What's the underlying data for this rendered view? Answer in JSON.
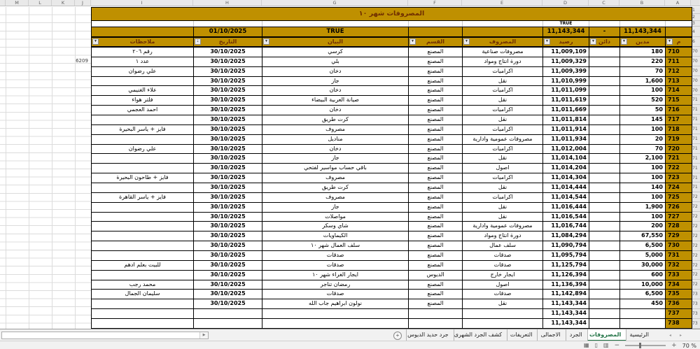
{
  "title": "المصروفات شهر ١٠",
  "sheet": {
    "column_letters": [
      "M",
      "L",
      "K",
      "J",
      "I",
      "H",
      "G",
      "F",
      "E",
      "D",
      "C",
      "B",
      "A"
    ],
    "gutter_top": [
      "1",
      "2",
      "3",
      "4",
      "6"
    ]
  },
  "stray": {
    "value": "6209"
  },
  "summary": {
    "flag_small": "TRUE",
    "flag": "TRUE",
    "start_date": "01/10/2025",
    "total_balance": "11,143,344",
    "credit_dash": "-",
    "total_debit": "11,143,344"
  },
  "header": {
    "serial": "م",
    "debit": "مدين",
    "credit": "دائن",
    "balance": "رصيد",
    "expense": "المصروف",
    "section": "القسم",
    "description": "البيان",
    "date": "التاريخ",
    "notes": "ملاحظات"
  },
  "rows": [
    {
      "g": "70",
      "s": "710",
      "db": "180",
      "cr": "",
      "bal": "11,009,109",
      "exp": "مصروفات صناعية",
      "sec": "المصنع",
      "desc": "كرسي",
      "date": "30/10/2025",
      "note": "رقم ٢٠٦"
    },
    {
      "g": "70",
      "s": "711",
      "db": "220",
      "cr": "",
      "bal": "11,009,329",
      "exp": "دورة انتاج ومواد",
      "sec": "المصنع",
      "desc": "بلي",
      "date": "30/10/2025",
      "note": "عدد ١"
    },
    {
      "g": "70",
      "s": "712",
      "db": "70",
      "cr": "",
      "bal": "11,009,399",
      "exp": "اكراميات",
      "sec": "المصنع",
      "desc": "دخان",
      "date": "30/10/2025",
      "note": "علي رضوان"
    },
    {
      "g": "70",
      "s": "713",
      "db": "1,600",
      "cr": "",
      "bal": "11,010,999",
      "exp": "نقل",
      "sec": "المصنع",
      "desc": "جاز",
      "date": "30/10/2025",
      "note": ""
    },
    {
      "g": "70",
      "s": "714",
      "db": "100",
      "cr": "",
      "bal": "11,011,099",
      "exp": "اكراميات",
      "sec": "المصنع",
      "desc": "دخان",
      "date": "30/10/2025",
      "note": "علاء الغنيمي"
    },
    {
      "g": "71",
      "s": "715",
      "db": "520",
      "cr": "",
      "bal": "11,011,619",
      "exp": "نقل",
      "sec": "المصنع",
      "desc": "صيانة العربية البيضاء",
      "date": "30/10/2025",
      "note": "فلتر هواء"
    },
    {
      "g": "71",
      "s": "716",
      "db": "50",
      "cr": "",
      "bal": "11,011,669",
      "exp": "اكراميات",
      "sec": "المصنع",
      "desc": "دخان",
      "date": "30/10/2025",
      "note": "احمد العجمي"
    },
    {
      "g": "71",
      "s": "717",
      "db": "145",
      "cr": "",
      "bal": "11,011,814",
      "exp": "نقل",
      "sec": "المصنع",
      "desc": "كرت طريق",
      "date": "30/10/2025",
      "note": ""
    },
    {
      "g": "71",
      "s": "718",
      "db": "100",
      "cr": "",
      "bal": "11,011,914",
      "exp": "اكراميات",
      "sec": "المصنع",
      "desc": "مصروف",
      "date": "30/10/2025",
      "note": "فايز + ياسر البحيرة"
    },
    {
      "g": "71",
      "s": "719",
      "db": "20",
      "cr": "",
      "bal": "11,011,934",
      "exp": "مصروفات عمومية وادارية",
      "sec": "المصنع",
      "desc": "مناديل",
      "date": "30/10/2025",
      "note": ""
    },
    {
      "g": "71",
      "s": "720",
      "db": "70",
      "cr": "",
      "bal": "11,012,004",
      "exp": "اكراميات",
      "sec": "المصنع",
      "desc": "دخان",
      "date": "30/10/2025",
      "note": "علي رضوان"
    },
    {
      "g": "71",
      "s": "721",
      "db": "2,100",
      "cr": "",
      "bal": "11,014,104",
      "exp": "نقل",
      "sec": "المصنع",
      "desc": "جاز",
      "date": "30/10/2025",
      "note": ""
    },
    {
      "g": "71",
      "s": "722",
      "db": "100",
      "cr": "",
      "bal": "11,014,204",
      "exp": "اصول",
      "sec": "المصنع",
      "desc": "باقي حساب مواسير لفتحي",
      "date": "30/10/2025",
      "note": ""
    },
    {
      "g": "71",
      "s": "723",
      "db": "100",
      "cr": "",
      "bal": "11,014,304",
      "exp": "اكراميات",
      "sec": "المصنع",
      "desc": "مصروف",
      "date": "30/10/2025",
      "note": "فايز + طاحون البحيرة"
    },
    {
      "g": "71",
      "s": "724",
      "db": "140",
      "cr": "",
      "bal": "11,014,444",
      "exp": "نقل",
      "sec": "المصنع",
      "desc": "كرت طريق",
      "date": "30/10/2025",
      "note": ""
    },
    {
      "g": "72",
      "s": "725",
      "db": "100",
      "cr": "",
      "bal": "11,014,544",
      "exp": "اكراميات",
      "sec": "المصنع",
      "desc": "مصروف",
      "date": "30/10/2025",
      "note": "فايز + ياسر القاهرة"
    },
    {
      "g": "72",
      "s": "726",
      "db": "1,900",
      "cr": "",
      "bal": "11,016,444",
      "exp": "نقل",
      "sec": "المصنع",
      "desc": "جاز",
      "date": "30/10/2025",
      "note": ""
    },
    {
      "g": "72",
      "s": "727",
      "db": "100",
      "cr": "",
      "bal": "11,016,544",
      "exp": "نقل",
      "sec": "المصنع",
      "desc": "مواصلات",
      "date": "30/10/2025",
      "note": ""
    },
    {
      "g": "72",
      "s": "728",
      "db": "200",
      "cr": "",
      "bal": "11,016,744",
      "exp": "مصروفات عمومية وادارية",
      "sec": "المصنع",
      "desc": "شاي وسكر",
      "date": "30/10/2025",
      "note": ""
    },
    {
      "g": "72",
      "s": "729",
      "db": "67,550",
      "cr": "",
      "bal": "11,084,294",
      "exp": "دورة انتاج ومواد",
      "sec": "المصنع",
      "desc": "الكيماويات",
      "date": "30/10/2025",
      "note": ""
    },
    {
      "g": "72",
      "s": "730",
      "db": "6,500",
      "cr": "",
      "bal": "11,090,794",
      "exp": "سلف عمال",
      "sec": "المصنع",
      "desc": "سلف العمال شهر ١٠",
      "date": "30/10/2025",
      "note": ""
    },
    {
      "g": "72",
      "s": "731",
      "db": "5,000",
      "cr": "",
      "bal": "11,095,794",
      "exp": "صدقات",
      "sec": "المصنع",
      "desc": "صدقات",
      "date": "30/10/2025",
      "note": ""
    },
    {
      "g": "72",
      "s": "732",
      "db": "30,000",
      "cr": "",
      "bal": "11,125,794",
      "exp": "صدقات",
      "sec": "المصنع",
      "desc": "صدقات",
      "date": "30/10/2025",
      "note": "للبيت بعلم ادهم"
    },
    {
      "g": "72",
      "s": "733",
      "db": "600",
      "cr": "",
      "bal": "11,126,394",
      "exp": "ايجار خارج",
      "sec": "الديوس",
      "desc": "ايجار الغراء شهر ١٠",
      "date": "30/10/2025",
      "note": ""
    },
    {
      "g": "72",
      "s": "734",
      "db": "10,000",
      "cr": "",
      "bal": "11,136,394",
      "exp": "اصول",
      "sec": "المصنع",
      "desc": "رمضان تناجر",
      "date": "30/10/2025",
      "note": "محمد رجب"
    },
    {
      "g": "73",
      "s": "735",
      "db": "6,500",
      "cr": "",
      "bal": "11,142,894",
      "exp": "صدقات",
      "sec": "المصنع",
      "desc": "صدقات",
      "date": "30/10/2025",
      "note": "سليمان الجمال"
    },
    {
      "g": "73",
      "s": "736",
      "db": "450",
      "cr": "",
      "bal": "11,143,344",
      "exp": "نقل",
      "sec": "المصنع",
      "desc": "نولون ابراهيم جاب الله",
      "date": "30/10/2025",
      "note": ""
    },
    {
      "g": "73",
      "s": "737",
      "db": "",
      "cr": "",
      "bal": "11,143,344",
      "exp": "",
      "sec": "",
      "desc": "",
      "date": "",
      "note": ""
    },
    {
      "g": "73",
      "s": "738",
      "db": "",
      "cr": "",
      "bal": "11,143,344",
      "exp": "",
      "sec": "",
      "desc": "",
      "date": "",
      "note": ""
    }
  ],
  "tabs": {
    "items": [
      {
        "label": "الرئيسية",
        "active": false
      },
      {
        "label": "المصروفات",
        "active": true
      },
      {
        "label": "الجرد",
        "active": false
      },
      {
        "label": "الاجمالى",
        "active": false
      },
      {
        "label": "التعريفات",
        "active": false
      },
      {
        "label": "كشف الجرد الشهرى",
        "active": false
      },
      {
        "label": "جرد حديد الديوس",
        "active": false
      }
    ]
  },
  "icons": {
    "dropdown": "▼",
    "sort": "⇣",
    "add": "+",
    "scroll_right": "▶",
    "prev": "◂",
    "next": "▸",
    "view_normal": "▦",
    "view_layout": "▯",
    "view_break": "▥",
    "minus": "−",
    "plus": "+"
  },
  "status": {
    "zoom_level": "70 %"
  },
  "colors": {
    "gold": "#BF9000",
    "header_text": "#6F2D00",
    "active_tab_green": "#1F7244"
  }
}
